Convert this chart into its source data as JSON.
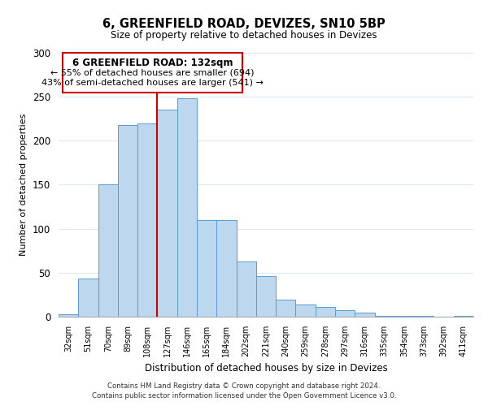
{
  "title": "6, GREENFIELD ROAD, DEVIZES, SN10 5BP",
  "subtitle": "Size of property relative to detached houses in Devizes",
  "xlabel": "Distribution of detached houses by size in Devizes",
  "ylabel": "Number of detached properties",
  "bar_labels": [
    "32sqm",
    "51sqm",
    "70sqm",
    "89sqm",
    "108sqm",
    "127sqm",
    "146sqm",
    "165sqm",
    "184sqm",
    "202sqm",
    "221sqm",
    "240sqm",
    "259sqm",
    "278sqm",
    "297sqm",
    "316sqm",
    "335sqm",
    "354sqm",
    "373sqm",
    "392sqm",
    "411sqm"
  ],
  "bar_values": [
    3,
    43,
    150,
    218,
    220,
    235,
    248,
    110,
    110,
    63,
    46,
    19,
    14,
    11,
    7,
    5,
    1,
    1,
    1,
    0,
    1
  ],
  "bar_color": "#bdd7ee",
  "bar_edge_color": "#5b9bd5",
  "property_line_x": 4.5,
  "property_line_label": "6 GREENFIELD ROAD: 132sqm",
  "annotation_line1": "← 55% of detached houses are smaller (694)",
  "annotation_line2": "43% of semi-detached houses are larger (541) →",
  "annotation_box_color": "#ffffff",
  "annotation_box_edge": "#cc0000",
  "vline_color": "#cc0000",
  "ylim": [
    0,
    300
  ],
  "yticks": [
    0,
    50,
    100,
    150,
    200,
    250,
    300
  ],
  "footer_line1": "Contains HM Land Registry data © Crown copyright and database right 2024.",
  "footer_line2": "Contains public sector information licensed under the Open Government Licence v3.0.",
  "bg_color": "#ffffff",
  "grid_color": "#dce9f5"
}
